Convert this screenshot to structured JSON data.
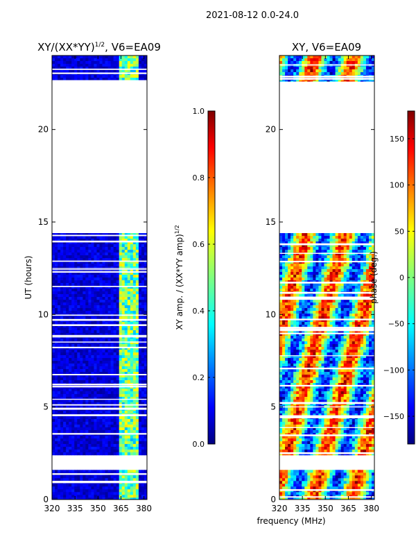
{
  "figure": {
    "suptitle": "2021-08-12 0.0-24.0",
    "xlabel_shared": "frequency (MHz)"
  },
  "chart_data": [
    {
      "type": "heatmap",
      "title": "XY/(XX*YY)^{1/2}, V6=EA09",
      "title_main": "XY/(XX*YY)",
      "title_sup": "1/2",
      "title_tail": ", V6=EA09",
      "xlabel": "",
      "ylabel": "UT (hours)",
      "x_ticks": [
        "320",
        "335",
        "350",
        "365",
        "380"
      ],
      "x_tick_values": [
        320,
        335,
        350,
        365,
        380
      ],
      "y_ticks": [
        "0",
        "5",
        "10",
        "15",
        "20"
      ],
      "y_tick_values": [
        0,
        5,
        10,
        15,
        20
      ],
      "xlim": [
        320,
        382
      ],
      "ylim": [
        0,
        24
      ],
      "data_blocks_hours": [
        [
          0,
          1.6
        ],
        [
          2.4,
          14.4
        ],
        [
          22.6,
          24
        ]
      ],
      "colorbar": {
        "label": "XY amp. / (XX*YY amp)^{1/2}",
        "label_main": "XY amp. / (XX*YY amp)",
        "label_sup": "1/2",
        "range": [
          0.0,
          1.0
        ],
        "ticks": [
          "0.0",
          "0.2",
          "0.4",
          "0.6",
          "0.8",
          "1.0"
        ],
        "tick_values": [
          0.0,
          0.2,
          0.4,
          0.6,
          0.8,
          1.0
        ]
      }
    },
    {
      "type": "heatmap",
      "title": "XY, V6=EA09",
      "xlabel": "frequency (MHz)",
      "ylabel": "",
      "x_ticks": [
        "320",
        "335",
        "350",
        "365",
        "380"
      ],
      "x_tick_values": [
        320,
        335,
        350,
        365,
        380
      ],
      "y_ticks": [
        "0",
        "5",
        "10",
        "15",
        "20"
      ],
      "y_tick_values": [
        0,
        5,
        10,
        15,
        20
      ],
      "xlim": [
        320,
        382
      ],
      "ylim": [
        0,
        24
      ],
      "data_blocks_hours": [
        [
          0,
          1.6
        ],
        [
          2.4,
          14.4
        ],
        [
          22.6,
          24
        ]
      ],
      "colorbar": {
        "label": "phase (deg.)",
        "range": [
          -180,
          180
        ],
        "ticks": [
          "150",
          "100",
          "50",
          "0",
          "−50",
          "−100",
          "−150"
        ],
        "tick_values": [
          150,
          100,
          50,
          0,
          -50,
          -100,
          -150
        ]
      }
    }
  ],
  "colors": {
    "background": "#ffffff",
    "axis": "#000000",
    "jet_low": "#00007f",
    "jet_high": "#7f0000"
  }
}
